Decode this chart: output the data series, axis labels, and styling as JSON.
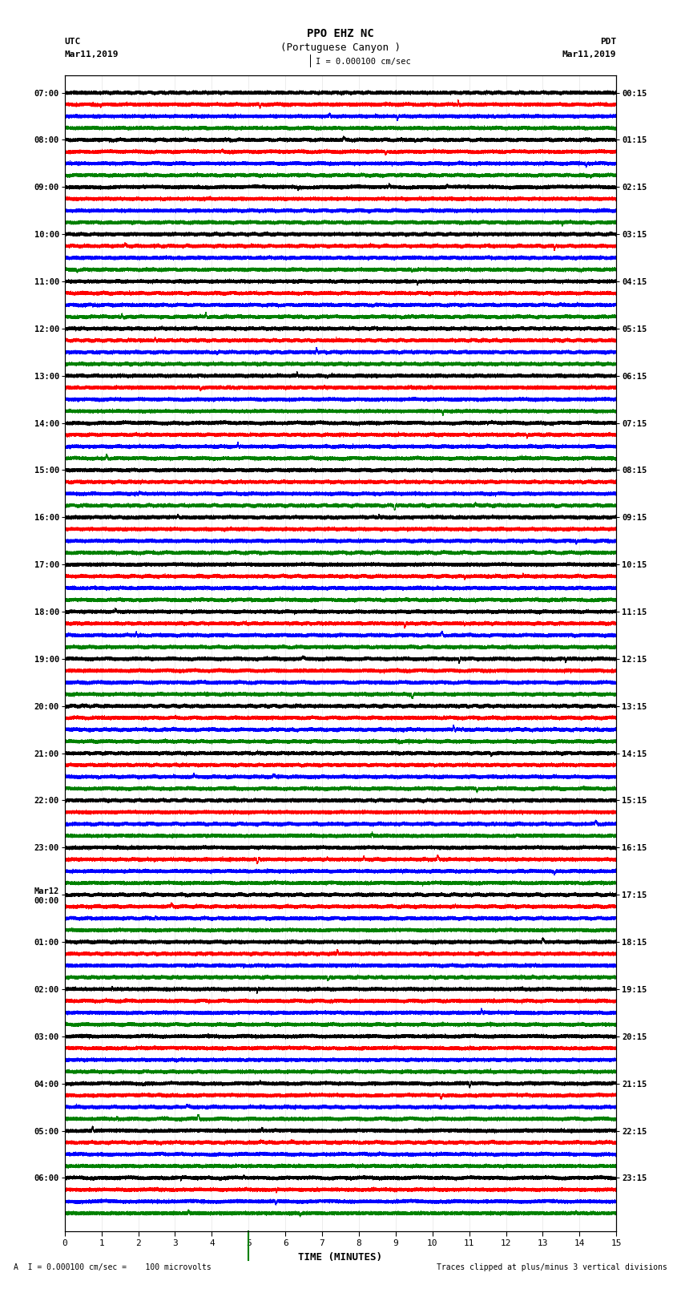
{
  "title_line1": "PPO EHZ NC",
  "title_line2": "(Portuguese Canyon )",
  "title_line3": "I = 0.000100 cm/sec",
  "xlabel": "TIME (MINUTES)",
  "footer_left": "A  I = 0.000100 cm/sec =    100 microvolts",
  "footer_right": "Traces clipped at plus/minus 3 vertical divisions",
  "utc_labels": [
    "07:00",
    "08:00",
    "09:00",
    "10:00",
    "11:00",
    "12:00",
    "13:00",
    "14:00",
    "15:00",
    "16:00",
    "17:00",
    "18:00",
    "19:00",
    "20:00",
    "21:00",
    "22:00",
    "23:00",
    "Mar12\n00:00",
    "01:00",
    "02:00",
    "03:00",
    "04:00",
    "05:00",
    "06:00"
  ],
  "pdt_labels": [
    "00:15",
    "01:15",
    "02:15",
    "03:15",
    "04:15",
    "05:15",
    "06:15",
    "07:15",
    "08:15",
    "09:15",
    "10:15",
    "11:15",
    "12:15",
    "13:15",
    "14:15",
    "15:15",
    "16:15",
    "17:15",
    "18:15",
    "19:15",
    "20:15",
    "21:15",
    "22:15",
    "23:15"
  ],
  "colors": [
    "black",
    "red",
    "blue",
    "green"
  ],
  "n_rows": 96,
  "n_groups": 24,
  "n_minutes": 15,
  "sample_rate": 100,
  "amplitude_scale": 0.38,
  "background_color": "white",
  "xlim": [
    0,
    15
  ],
  "seed": 42
}
